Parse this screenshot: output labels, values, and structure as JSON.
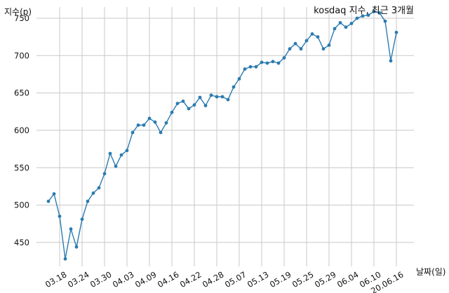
{
  "chart_data": {
    "type": "line",
    "title": "kosdaq 지수, 최근 3개월",
    "xlabel": "날짜(일)",
    "ylabel": "지수(p)",
    "x_ticks": [
      "03.18",
      "03.24",
      "03.30",
      "04.03",
      "04.09",
      "04.16",
      "04.22",
      "04.28",
      "05.07",
      "05.13",
      "05.19",
      "05.25",
      "05.29",
      "06.04",
      "06.10",
      "20.06.16"
    ],
    "y_ticks": [
      450,
      500,
      550,
      600,
      650,
      700,
      750
    ],
    "ylim": [
      418,
      765
    ],
    "grid": true,
    "color": "#2b7bb0",
    "series": [
      {
        "values": [
          505,
          515,
          485,
          428,
          468,
          444,
          481,
          505,
          516,
          523,
          542,
          569,
          552,
          567,
          573,
          597,
          607,
          607,
          616,
          611,
          597,
          610,
          624,
          636,
          639,
          629,
          634,
          644,
          633,
          647,
          645,
          645,
          641,
          658,
          669,
          682,
          685,
          685,
          691,
          690,
          692,
          690,
          697,
          709,
          716,
          709,
          720,
          729,
          725,
          709,
          714,
          736,
          744,
          738,
          743,
          750,
          753,
          754,
          759,
          757,
          746,
          693,
          731
        ]
      }
    ]
  }
}
